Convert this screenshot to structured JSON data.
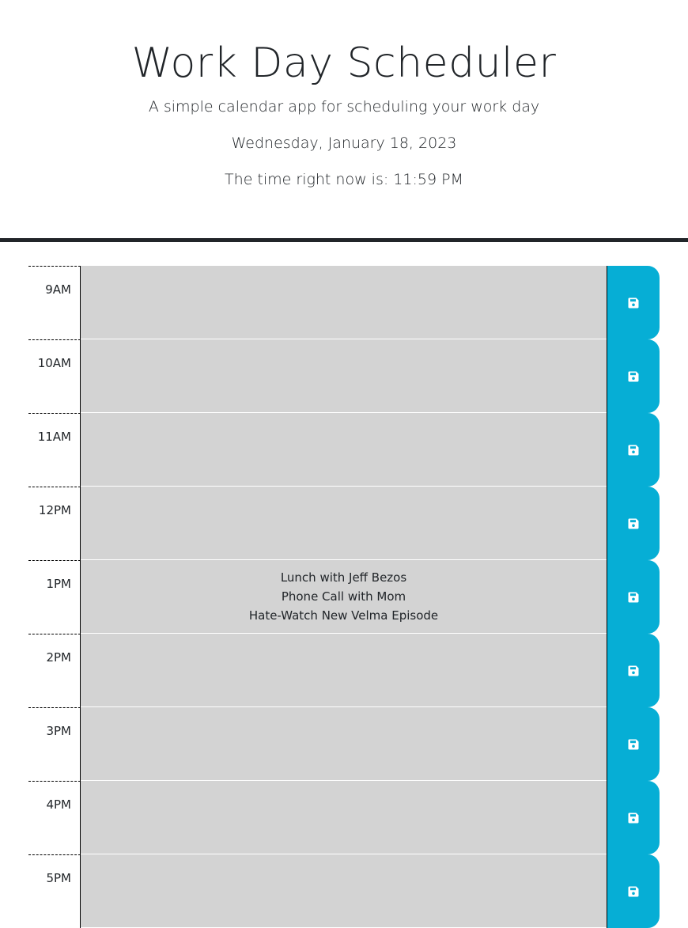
{
  "header": {
    "title": "Work Day Scheduler",
    "subtitle": "A simple calendar app for scheduling your work day",
    "date": "Wednesday, January 18, 2023",
    "clock": "The time right now is: 11:59 PM"
  },
  "schedule": {
    "blocks": [
      {
        "hour": "9AM",
        "text": ""
      },
      {
        "hour": "10AM",
        "text": ""
      },
      {
        "hour": "11AM",
        "text": ""
      },
      {
        "hour": "12PM",
        "text": ""
      },
      {
        "hour": "1PM",
        "text": "Lunch with Jeff Bezos\nPhone Call with Mom\nHate-Watch New Velma Episode"
      },
      {
        "hour": "2PM",
        "text": ""
      },
      {
        "hour": "3PM",
        "text": ""
      },
      {
        "hour": "4PM",
        "text": ""
      },
      {
        "hour": "5PM",
        "text": ""
      }
    ],
    "save_icon": "floppy-disk-icon"
  },
  "colors": {
    "past_block": "#d3d3d3",
    "save_button": "#06aed5",
    "header_rule": "#212529"
  }
}
